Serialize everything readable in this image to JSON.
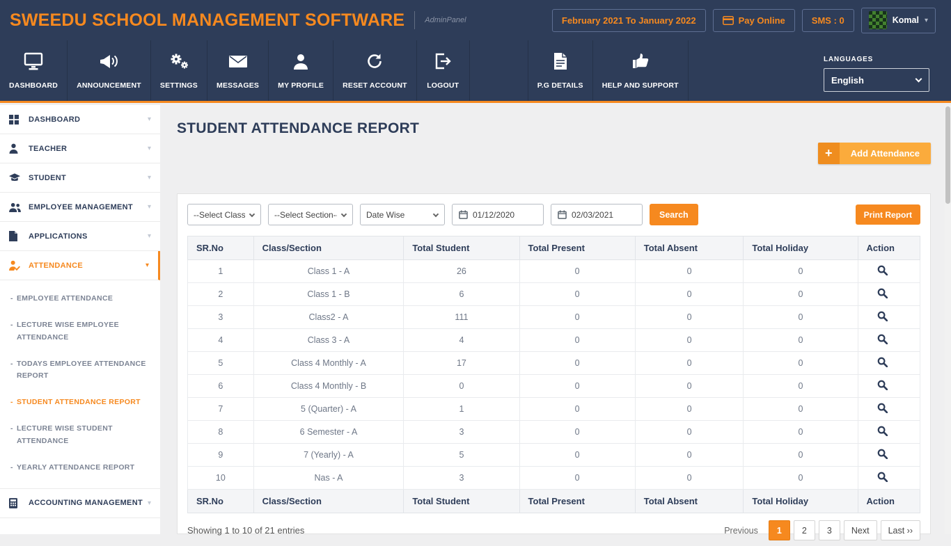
{
  "colors": {
    "navy": "#2e3d59",
    "orange": "#f6891f",
    "amber": "#fbab3c"
  },
  "header": {
    "brand": "SWEEDU SCHOOL MANAGEMENT SOFTWARE",
    "panel_label": "AdminPanel",
    "session_range": "February 2021 To January 2022",
    "pay_online_label": "Pay Online",
    "sms_label": "SMS : 0",
    "user_name": "Komal"
  },
  "nav": {
    "items": [
      {
        "label": "DASHBOARD"
      },
      {
        "label": "ANNOUNCEMENT"
      },
      {
        "label": "SETTINGS"
      },
      {
        "label": "MESSAGES"
      },
      {
        "label": "MY PROFILE"
      },
      {
        "label": "RESET ACCOUNT"
      },
      {
        "label": "LOGOUT"
      },
      {
        "label": "P.G DETAILS"
      },
      {
        "label": "HELP AND SUPPORT"
      }
    ],
    "languages_label": "LANGUAGES",
    "language_selected": "English"
  },
  "sidebar": {
    "items": [
      {
        "label": "DASHBOARD"
      },
      {
        "label": "TEACHER"
      },
      {
        "label": "STUDENT"
      },
      {
        "label": "EMPLOYEE MANAGEMENT"
      },
      {
        "label": "APPLICATIONS"
      },
      {
        "label": "ATTENDANCE"
      },
      {
        "label": "ACCOUNTING MANAGEMENT"
      }
    ],
    "submenu": [
      "EMPLOYEE ATTENDANCE",
      "LECTURE WISE EMPLOYEE ATTENDANCE",
      "TODAYS EMPLOYEE ATTENDANCE REPORT",
      "STUDENT ATTENDANCE REPORT",
      "LECTURE WISE STUDENT ATTENDANCE",
      "YEARLY ATTENDANCE REPORT"
    ],
    "active_item": "ATTENDANCE",
    "active_submenu": "STUDENT ATTENDANCE REPORT"
  },
  "main": {
    "title": "STUDENT ATTENDANCE REPORT",
    "add_attendance_label": "Add Attendance",
    "filters": {
      "class_placeholder": "--Select Class--",
      "section_placeholder": "--Select Section--",
      "date_mode": "Date Wise",
      "date_from": "01/12/2020",
      "date_to": "02/03/2021",
      "search_label": "Search",
      "print_label": "Print Report"
    },
    "table": {
      "headers": [
        "SR.No",
        "Class/Section",
        "Total Student",
        "Total Present",
        "Total Absent",
        "Total Holiday",
        "Action"
      ],
      "rows": [
        {
          "sr_no": "1",
          "class_section": "Class 1 - A",
          "total_student": "26",
          "total_present": "0",
          "total_absent": "0",
          "total_holiday": "0"
        },
        {
          "sr_no": "2",
          "class_section": "Class 1 - B",
          "total_student": "6",
          "total_present": "0",
          "total_absent": "0",
          "total_holiday": "0"
        },
        {
          "sr_no": "3",
          "class_section": "Class2 - A",
          "total_student": "111",
          "total_present": "0",
          "total_absent": "0",
          "total_holiday": "0"
        },
        {
          "sr_no": "4",
          "class_section": "Class 3 - A",
          "total_student": "4",
          "total_present": "0",
          "total_absent": "0",
          "total_holiday": "0"
        },
        {
          "sr_no": "5",
          "class_section": "Class 4 Monthly - A",
          "total_student": "17",
          "total_present": "0",
          "total_absent": "0",
          "total_holiday": "0"
        },
        {
          "sr_no": "6",
          "class_section": "Class 4 Monthly - B",
          "total_student": "0",
          "total_present": "0",
          "total_absent": "0",
          "total_holiday": "0"
        },
        {
          "sr_no": "7",
          "class_section": "5 (Quarter) - A",
          "total_student": "1",
          "total_present": "0",
          "total_absent": "0",
          "total_holiday": "0"
        },
        {
          "sr_no": "8",
          "class_section": "6 Semester - A",
          "total_student": "3",
          "total_present": "0",
          "total_absent": "0",
          "total_holiday": "0"
        },
        {
          "sr_no": "9",
          "class_section": "7 (Yearly) - A",
          "total_student": "5",
          "total_present": "0",
          "total_absent": "0",
          "total_holiday": "0"
        },
        {
          "sr_no": "10",
          "class_section": "Nas - A",
          "total_student": "3",
          "total_present": "0",
          "total_absent": "0",
          "total_holiday": "0"
        }
      ]
    },
    "table_footer": {
      "showing_text": "Showing 1 to 10 of 21 entries",
      "pagination": {
        "previous_label": "Previous",
        "pages": [
          "1",
          "2",
          "3"
        ],
        "active_page": "1",
        "next_label": "Next",
        "last_label": "Last ››"
      }
    }
  }
}
